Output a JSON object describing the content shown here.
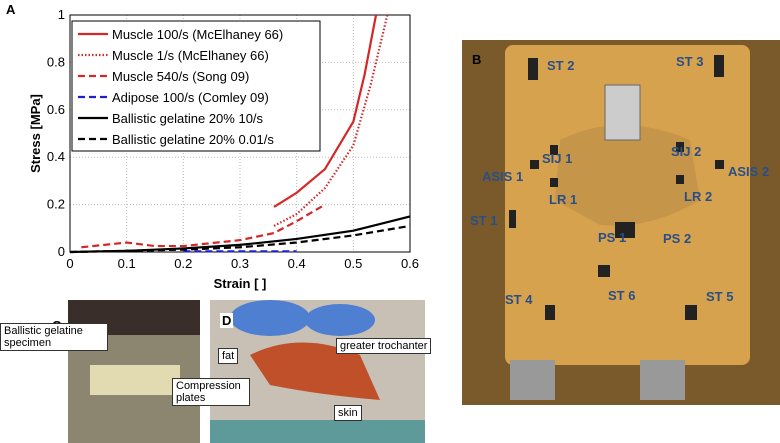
{
  "chart_data": {
    "type": "line",
    "panel_label": "A",
    "xlabel": "Strain [ ]",
    "ylabel": "Stress [MPa]",
    "xlim": [
      0,
      0.6
    ],
    "ylim": [
      0,
      1
    ],
    "xticks": [
      0,
      0.1,
      0.2,
      0.3,
      0.4,
      0.5,
      0.6
    ],
    "yticks": [
      0,
      0.2,
      0.4,
      0.6,
      0.8,
      1
    ],
    "grid": true,
    "legend": "upper-left",
    "series": [
      {
        "name": "Muscle 100/s (McElhaney 66)",
        "color": "#d62728",
        "style": "solid",
        "x": [
          0.36,
          0.4,
          0.45,
          0.5,
          0.52,
          0.54
        ],
        "values": [
          0.19,
          0.25,
          0.35,
          0.55,
          0.75,
          1.0
        ]
      },
      {
        "name": "Muscle 1/s (McElhaney 66)",
        "color": "#d62728",
        "style": "dotted",
        "x": [
          0.36,
          0.4,
          0.45,
          0.5,
          0.53,
          0.56
        ],
        "values": [
          0.11,
          0.16,
          0.27,
          0.45,
          0.7,
          1.0
        ]
      },
      {
        "name": "Muscle 540/s (Song 09)",
        "color": "#d62728",
        "style": "dashed",
        "x": [
          0.02,
          0.1,
          0.15,
          0.2,
          0.3,
          0.36,
          0.4,
          0.45
        ],
        "values": [
          0.02,
          0.04,
          0.025,
          0.025,
          0.05,
          0.08,
          0.13,
          0.2
        ]
      },
      {
        "name": "Adipose 100/s (Comley 09)",
        "color": "#1f1fd0",
        "style": "dashed",
        "x": [
          0.2,
          0.3,
          0.4
        ],
        "values": [
          0.003,
          0.003,
          0.003
        ]
      },
      {
        "name": "Ballistic gelatine 20% 10/s",
        "color": "#000000",
        "style": "solid",
        "x": [
          0,
          0.1,
          0.2,
          0.3,
          0.4,
          0.5,
          0.6
        ],
        "values": [
          0,
          0.005,
          0.015,
          0.03,
          0.055,
          0.09,
          0.15
        ]
      },
      {
        "name": "Ballistic gelatine 20% 0.01/s",
        "color": "#000000",
        "style": "dashed",
        "x": [
          0,
          0.2,
          0.3,
          0.4,
          0.5,
          0.6
        ],
        "values": [
          0,
          0.01,
          0.02,
          0.04,
          0.07,
          0.11
        ]
      }
    ]
  },
  "photo_b": {
    "panel_label": "B",
    "labels": [
      "ST 2",
      "ST 3",
      "SIJ 1",
      "SIJ 2",
      "ASIS 1",
      "ASIS 2",
      "LR 1",
      "LR 2",
      "ST 1",
      "PS 1",
      "PS 2",
      "ST 4",
      "ST 6",
      "ST 5"
    ]
  },
  "photo_c": {
    "panel_label": "C",
    "labels": [
      "Ballistic gelatine specimen",
      "Compression plates"
    ]
  },
  "photo_d": {
    "panel_label": "D",
    "labels": [
      "fat",
      "greater trochanter",
      "skin"
    ]
  }
}
